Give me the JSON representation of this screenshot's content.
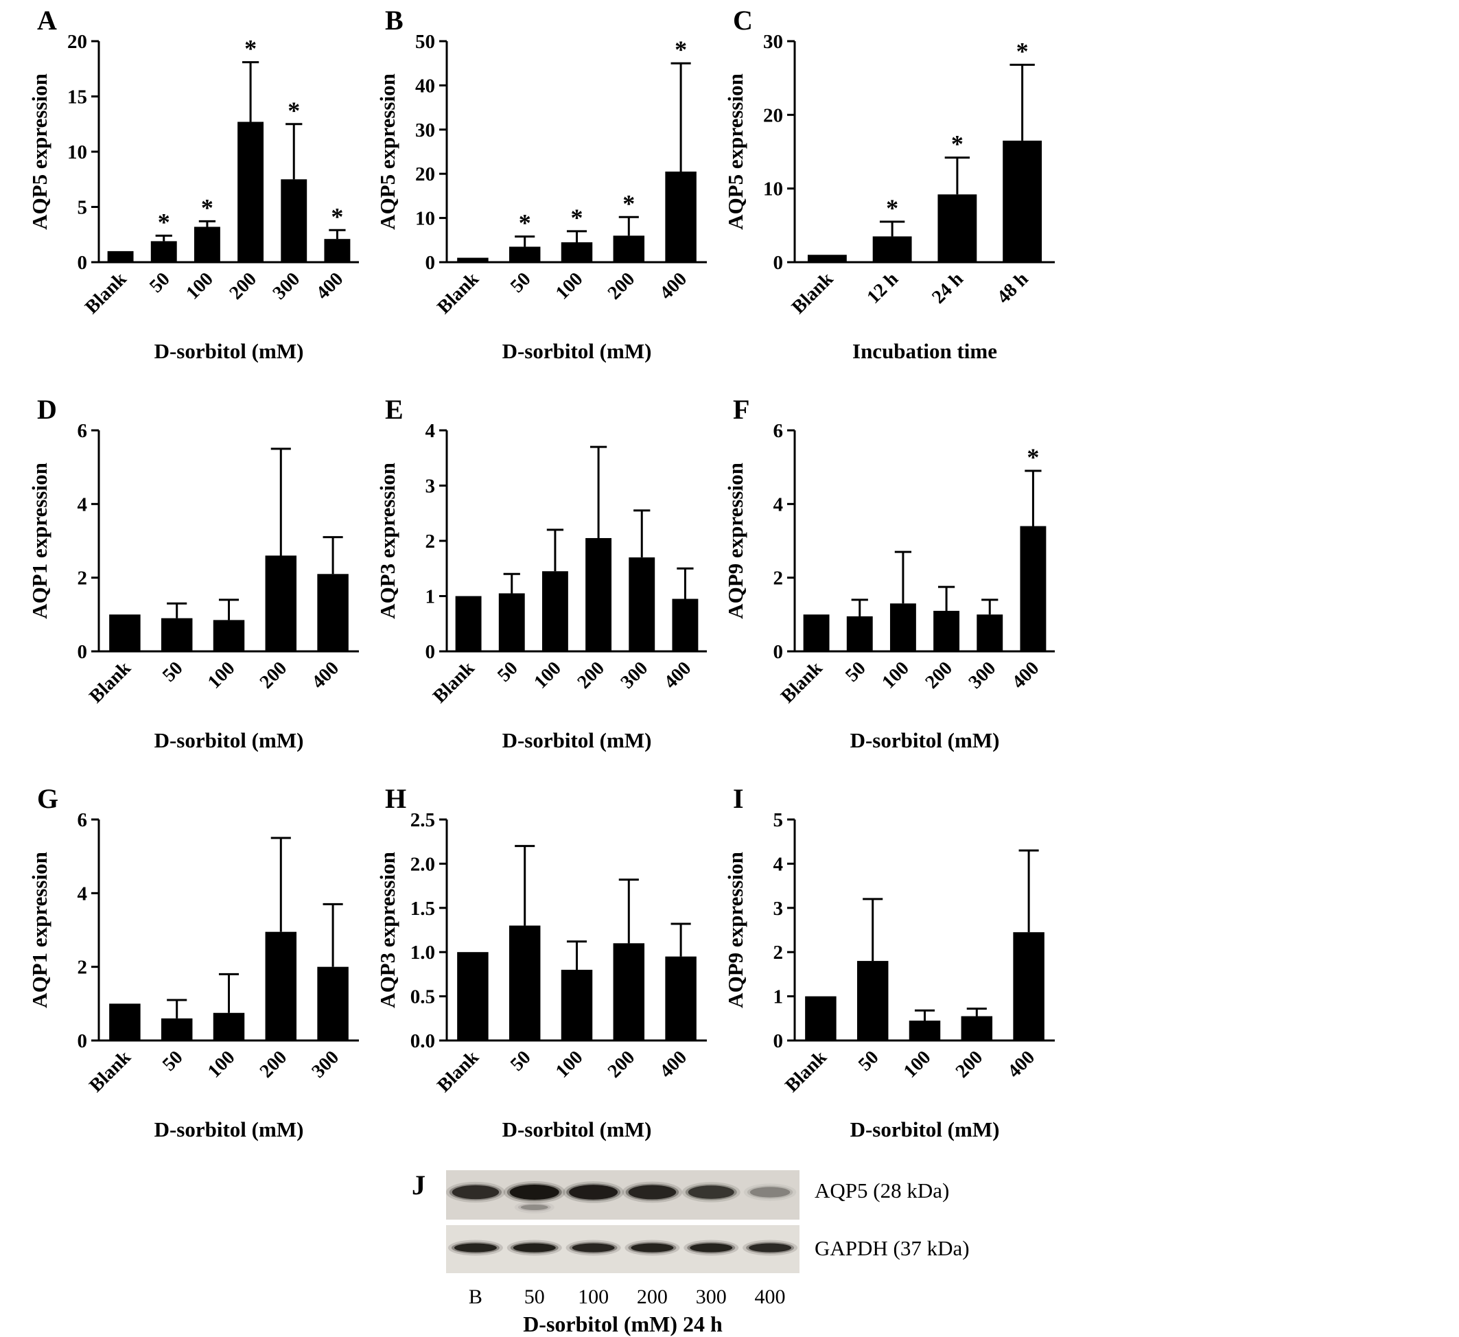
{
  "chart_data": [
    {
      "panel": "A",
      "type": "bar",
      "title": "",
      "ylabel": "AQP5 expression",
      "xlabel": "D-sorbitol (mM)",
      "categories": [
        "Blank",
        "50",
        "100",
        "200",
        "300",
        "400"
      ],
      "values": [
        1.0,
        1.9,
        3.2,
        12.7,
        7.5,
        2.1
      ],
      "errors": [
        0,
        0.5,
        0.5,
        5.4,
        5.0,
        0.8
      ],
      "significant": [
        false,
        true,
        true,
        true,
        true,
        true
      ],
      "ylim": [
        0,
        20
      ],
      "yticks": [
        "0",
        "5",
        "10",
        "15",
        "20"
      ]
    },
    {
      "panel": "B",
      "type": "bar",
      "title": "",
      "ylabel": "AQP5 expression",
      "xlabel": "D-sorbitol (mM)",
      "categories": [
        "Blank",
        "50",
        "100",
        "200",
        "400"
      ],
      "values": [
        1.0,
        3.5,
        4.5,
        6.0,
        20.5
      ],
      "errors": [
        0,
        2.3,
        2.5,
        4.2,
        24.5
      ],
      "significant": [
        false,
        true,
        true,
        true,
        true
      ],
      "ylim": [
        0,
        50
      ],
      "yticks": [
        "0",
        "10",
        "20",
        "30",
        "40",
        "50"
      ]
    },
    {
      "panel": "C",
      "type": "bar",
      "title": "",
      "ylabel": "AQP5 expression",
      "xlabel": "Incubation time",
      "categories": [
        "Blank",
        "12 h",
        "24 h",
        "48 h"
      ],
      "values": [
        1.0,
        3.5,
        9.2,
        16.5
      ],
      "errors": [
        0,
        2.0,
        5.0,
        10.3
      ],
      "significant": [
        false,
        true,
        true,
        true
      ],
      "ylim": [
        0,
        30
      ],
      "yticks": [
        "0",
        "10",
        "20",
        "30"
      ]
    },
    {
      "panel": "D",
      "type": "bar",
      "title": "",
      "ylabel": "AQP1 expression",
      "xlabel": "D-sorbitol (mM)",
      "categories": [
        "Blank",
        "50",
        "100",
        "200",
        "400"
      ],
      "values": [
        1.0,
        0.9,
        0.85,
        2.6,
        2.1
      ],
      "errors": [
        0,
        0.4,
        0.55,
        2.9,
        1.0
      ],
      "significant": [
        false,
        false,
        false,
        false,
        false
      ],
      "ylim": [
        0,
        6
      ],
      "yticks": [
        "0",
        "2",
        "4",
        "6"
      ]
    },
    {
      "panel": "E",
      "type": "bar",
      "title": "",
      "ylabel": "AQP3 expression",
      "xlabel": "D-sorbitol (mM)",
      "categories": [
        "Blank",
        "50",
        "100",
        "200",
        "300",
        "400"
      ],
      "values": [
        1.0,
        1.05,
        1.45,
        2.05,
        1.7,
        0.95
      ],
      "errors": [
        0,
        0.35,
        0.75,
        1.65,
        0.85,
        0.55
      ],
      "significant": [
        false,
        false,
        false,
        false,
        false,
        false
      ],
      "ylim": [
        0,
        4
      ],
      "yticks": [
        "0",
        "1",
        "2",
        "3",
        "4"
      ]
    },
    {
      "panel": "F",
      "type": "bar",
      "title": "",
      "ylabel": "AQP9 expression",
      "xlabel": "D-sorbitol (mM)",
      "categories": [
        "Blank",
        "50",
        "100",
        "200",
        "300",
        "400"
      ],
      "values": [
        1.0,
        0.95,
        1.3,
        1.1,
        1.0,
        3.4
      ],
      "errors": [
        0,
        0.45,
        1.4,
        0.65,
        0.4,
        1.5
      ],
      "significant": [
        false,
        false,
        false,
        false,
        false,
        true
      ],
      "ylim": [
        0,
        6
      ],
      "yticks": [
        "0",
        "2",
        "4",
        "6"
      ]
    },
    {
      "panel": "G",
      "type": "bar",
      "title": "",
      "ylabel": "AQP1 expression",
      "xlabel": "D-sorbitol (mM)",
      "categories": [
        "Blank",
        "50",
        "100",
        "200",
        "300"
      ],
      "values": [
        1.0,
        0.6,
        0.75,
        2.95,
        2.0
      ],
      "errors": [
        0,
        0.5,
        1.05,
        2.55,
        1.7
      ],
      "significant": [
        false,
        false,
        false,
        false,
        false
      ],
      "ylim": [
        0,
        6
      ],
      "yticks": [
        "0",
        "2",
        "4",
        "6"
      ]
    },
    {
      "panel": "H",
      "type": "bar",
      "title": "",
      "ylabel": "AQP3 expression",
      "xlabel": "D-sorbitol (mM)",
      "categories": [
        "Blank",
        "50",
        "100",
        "200",
        "400"
      ],
      "values": [
        1.0,
        1.3,
        0.8,
        1.1,
        0.95
      ],
      "errors": [
        0,
        0.9,
        0.32,
        0.72,
        0.37
      ],
      "significant": [
        false,
        false,
        false,
        false,
        false
      ],
      "ylim": [
        0,
        2.5
      ],
      "yticks": [
        "0.0",
        "0.5",
        "1.0",
        "1.5",
        "2.0",
        "2.5"
      ]
    },
    {
      "panel": "I",
      "type": "bar",
      "title": "",
      "ylabel": "AQP9 expression",
      "xlabel": "D-sorbitol (mM)",
      "categories": [
        "Blank",
        "50",
        "100",
        "200",
        "400"
      ],
      "values": [
        1.0,
        1.8,
        0.45,
        0.55,
        2.45
      ],
      "errors": [
        0,
        1.4,
        0.23,
        0.17,
        1.85
      ],
      "significant": [
        false,
        false,
        false,
        false,
        false
      ],
      "ylim": [
        0,
        5
      ],
      "yticks": [
        "0",
        "1",
        "2",
        "3",
        "4",
        "5"
      ]
    }
  ],
  "blot": {
    "panel_label": "J",
    "rows": [
      {
        "label": "AQP5  (28 kDa)",
        "intensities": [
          0.82,
          1.0,
          0.95,
          0.88,
          0.75,
          0.32
        ]
      },
      {
        "label": "GAPDH (37 kDa)",
        "intensities": [
          0.9,
          0.92,
          0.88,
          0.9,
          0.9,
          0.85
        ]
      }
    ],
    "lanes": [
      "B",
      "50",
      "100",
      "200",
      "300",
      "400"
    ],
    "caption": "D-sorbitol (mM) 24 h"
  }
}
